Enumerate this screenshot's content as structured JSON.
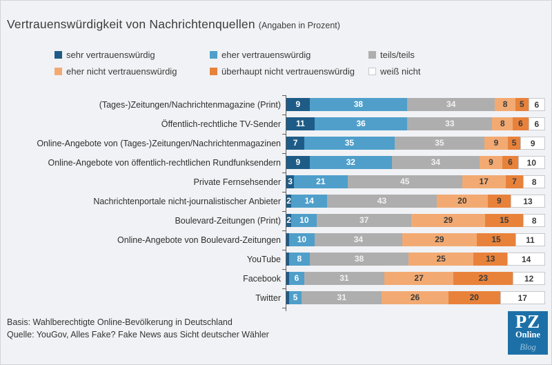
{
  "title": "Vertrauenswürdigkeit von Nachrichtenquellen",
  "subtitle": "(Angaben in Prozent)",
  "colors": {
    "background": "#f1f2f5",
    "axis": "#5a5a5a",
    "white_segment_border": "#c6c7ca"
  },
  "chart_data": {
    "type": "bar",
    "variant": "horizontal-stacked",
    "value_unit": "percent",
    "xlim": [
      0,
      100
    ],
    "grid": false,
    "legend_position": "top",
    "categories": [
      "(Tages-)Zeitungen/Nachrichtenmagazine (Print)",
      "Öffentlich-rechtliche TV-Sender",
      "Online-Angebote von (Tages-)Zeitungen/Nachrichtenmagazinen",
      "Online-Angebote von öffentlich-rechtlichen Rundfunksendern",
      "Private Fernsehsender",
      "Nachrichtenportale nicht-journalistischer Anbieter",
      "Boulevard-Zeitungen (Print)",
      "Online-Angebote von Boulevard-Zeitungen",
      "YouTube",
      "Facebook",
      "Twitter"
    ],
    "series": [
      {
        "name": "sehr vertrauenswürdig",
        "color": "#1e5c87",
        "text_color": "#ffffff",
        "border": "none",
        "values": [
          9,
          11,
          7,
          9,
          3,
          2,
          2,
          1,
          1,
          1,
          1
        ]
      },
      {
        "name": "eher vertrauenswürdig",
        "color": "#4f9fca",
        "text_color": "#ffffff",
        "border": "none",
        "values": [
          38,
          36,
          35,
          32,
          21,
          14,
          10,
          10,
          8,
          6,
          5
        ]
      },
      {
        "name": "teils/teils",
        "color": "#aeaeae",
        "text_color": "#f2f2f2",
        "border": "none",
        "values": [
          34,
          33,
          35,
          34,
          45,
          43,
          37,
          34,
          38,
          31,
          31
        ]
      },
      {
        "name": "eher nicht vertrauenswürdig",
        "color": "#f2aa72",
        "text_color": "#3b3b3b",
        "border": "none",
        "values": [
          8,
          8,
          9,
          9,
          17,
          20,
          29,
          29,
          25,
          27,
          26
        ]
      },
      {
        "name": "überhaupt nicht vertrauenswürdig",
        "color": "#e8823b",
        "text_color": "#3b3b3b",
        "border": "none",
        "values": [
          5,
          6,
          5,
          6,
          7,
          9,
          15,
          15,
          13,
          23,
          20
        ]
      },
      {
        "name": "weiß nicht",
        "color": "#ffffff",
        "text_color": "#3b3b3b",
        "border": "#c6c7ca",
        "values": [
          6,
          6,
          9,
          10,
          8,
          13,
          8,
          11,
          14,
          12,
          17
        ]
      }
    ]
  },
  "footer": {
    "basis": "Basis: Wahlberechtigte Online-Bevölkerung in Deutschland",
    "quelle": "Quelle: YouGov, Alles Fake? Fake News aus Sicht deutscher Wähler"
  },
  "logo": {
    "line1": "PZ",
    "line2": "Online",
    "line3": "Blog",
    "background": "#1d70a7"
  }
}
